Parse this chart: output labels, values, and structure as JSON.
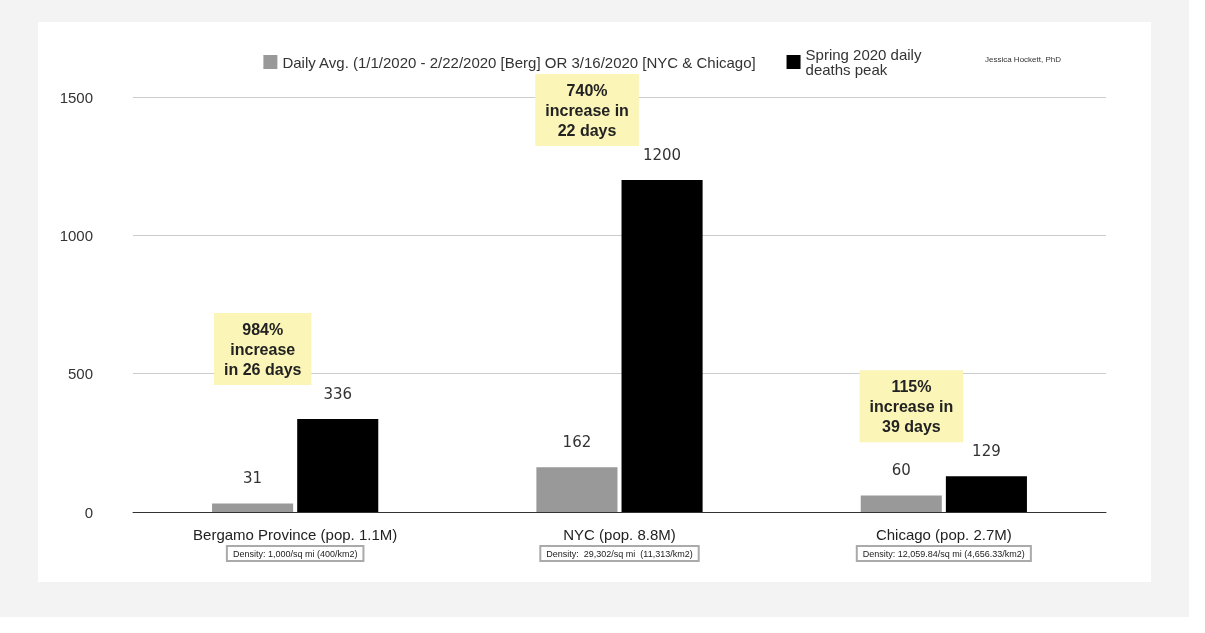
{
  "chart_data": {
    "type": "bar",
    "categories": [
      "Bergamo Province (pop. 1.1M)\nDensity: 1,000/sq mi (400/km2)",
      "NYC (pop. 8.8M)\nDensity:  29,302/sq mi  (11,313/km2)",
      "Chicago (pop. 2.7M)\nDensity: 12,059.84/sq mi (4,656.33/km2)"
    ],
    "series": [
      {
        "name": "Daily Avg. (1/1/2020 - 2/22/2020 [Berg] OR 3/16/2020 [NYC & Chicago]",
        "color": "#999999",
        "values": [
          31,
          162,
          60
        ]
      },
      {
        "name": "Spring 2020 daily deaths peak",
        "color": "#000000",
        "values": [
          336,
          1200,
          129
        ]
      }
    ],
    "ylim": [
      0,
      1500
    ],
    "yticks": [
      0,
      500,
      1000,
      1500
    ],
    "grid": "y",
    "legend": "top",
    "data_labels": true,
    "annotations": [
      {
        "text": "984%\nincrease\nin 26 days",
        "x": "Bergamo Province (pop. 1.1M)\nDensity: 1,000/sq mi (400/km2)",
        "y": 336
      },
      {
        "text": "740%\nincrease in\n22 days",
        "x": "NYC (pop. 8.8M)\nDensity:  29,302/sq mi  (11,313/km2)",
        "y": 1200
      },
      {
        "text": "115%\nincrease in\n39 days",
        "x": "Chicago (pop. 2.7M)\nDensity: 12,059.84/sq mi (4,656.33/km2)",
        "y": 129
      },
      "Jessica Hockett, PhD"
    ]
  }
}
